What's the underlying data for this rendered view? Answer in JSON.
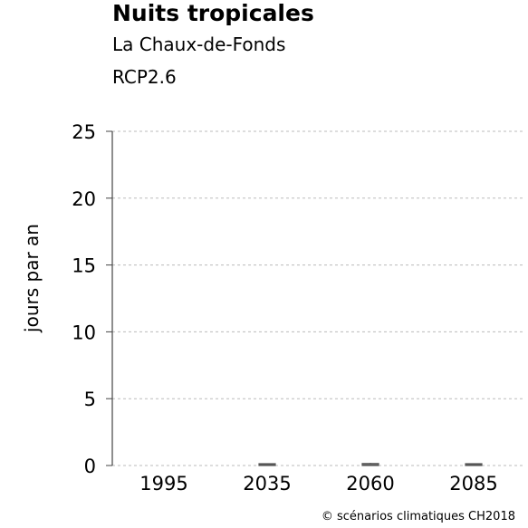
{
  "chart_data": {
    "type": "boxplot",
    "title": "Nuits tropicales",
    "subtitle": "La Chaux-de-Fonds",
    "scenario": "RCP2.6",
    "ylabel": "jours par an",
    "xlabel": "",
    "ylim": [
      0,
      25
    ],
    "yticks": [
      0,
      5,
      10,
      15,
      20,
      25
    ],
    "grid": true,
    "categories": [
      "1995",
      "2035",
      "2060",
      "2085"
    ],
    "boxes": [
      {
        "category": "1995",
        "low": 0,
        "q1": 0,
        "median": 0,
        "q3": 0,
        "high": 0
      },
      {
        "category": "2035",
        "low": 0,
        "q1": 0,
        "median": 0.05,
        "q3": 0.1,
        "high": 0.1
      },
      {
        "category": "2060",
        "low": 0,
        "q1": 0,
        "median": 0.05,
        "q3": 0.15,
        "high": 0.2
      },
      {
        "category": "2085",
        "low": 0,
        "q1": 0,
        "median": 0.05,
        "q3": 0.1,
        "high": 0.15
      }
    ],
    "colors": {
      "box": "#ffffff",
      "box_stroke": "#555555",
      "grid": "#bbbbbb",
      "axis": "#444444"
    }
  },
  "credit": "© scénarios climatiques CH2018"
}
